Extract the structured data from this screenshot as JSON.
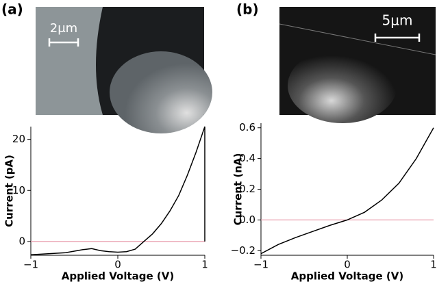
{
  "chart_data": [
    {
      "type": "line",
      "panel": "(a)",
      "scale_bar": "2μm",
      "xlabel": "Applied Voltage (V)",
      "ylabel": "Current (pA)",
      "x": [
        -1,
        -0.8,
        -0.6,
        -0.4,
        -0.3,
        -0.2,
        -0.1,
        0,
        0.1,
        0.2,
        0.3,
        0.4,
        0.5,
        0.6,
        0.7,
        0.8,
        0.9,
        1,
        1
      ],
      "series": [
        {
          "color": "#000000",
          "values": [
            -2.6,
            -2.4,
            -2.2,
            -1.6,
            -1.4,
            -1.8,
            -2.0,
            -2.1,
            -2.0,
            -1.5,
            0,
            1.5,
            3.5,
            6,
            9,
            13,
            17.5,
            22.5,
            0
          ]
        }
      ],
      "reference_line": {
        "value": 0,
        "color": "#e89aaa"
      },
      "xlim": [
        -1,
        1
      ],
      "ylim": [
        -2.7,
        22.5
      ],
      "xticks": [
        {
          "value": -1,
          "label": "−1"
        },
        0,
        1
      ],
      "yticks": [
        0,
        10,
        20
      ]
    },
    {
      "type": "line",
      "panel": "(b)",
      "scale_bar": "5μm",
      "xlabel": "Applied Voltage (V)",
      "ylabel": "Current (nA)",
      "x": [
        -1,
        -0.8,
        -0.6,
        -0.4,
        -0.2,
        0,
        0.2,
        0.4,
        0.6,
        0.8,
        1
      ],
      "series": [
        {
          "color": "#000000",
          "values": [
            -0.22,
            -0.16,
            -0.115,
            -0.075,
            -0.035,
            0,
            0.05,
            0.13,
            0.24,
            0.4,
            0.6
          ]
        }
      ],
      "reference_line": {
        "value": 0,
        "color": "#e89aaa"
      },
      "xlim": [
        -1,
        1
      ],
      "ylim": [
        -0.23,
        0.63
      ],
      "xticks": [
        {
          "value": -1,
          "label": "−1"
        },
        0,
        1
      ],
      "yticks": [
        {
          "value": -0.2,
          "label": "−0.2"
        },
        {
          "value": 0,
          "label": "0.0"
        },
        0.2,
        0.4,
        0.6
      ]
    }
  ]
}
